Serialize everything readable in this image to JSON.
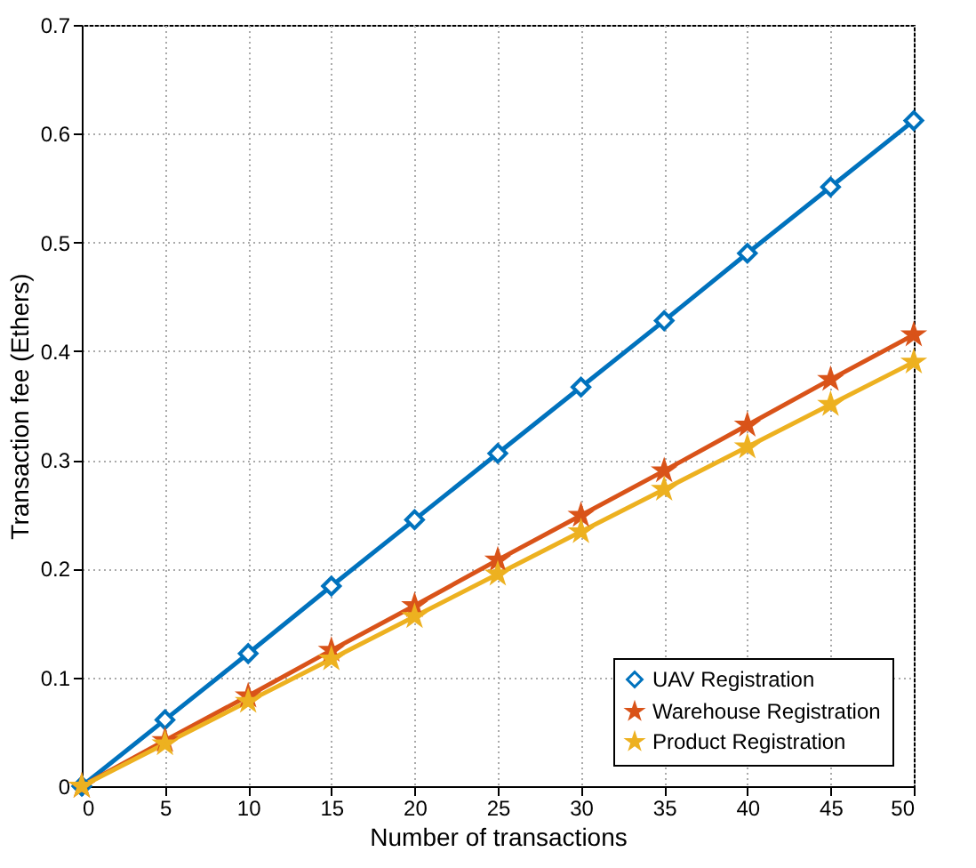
{
  "chart_data": {
    "type": "line",
    "xlabel": "Number of transactions",
    "ylabel": "Transaction fee (Ethers)",
    "x": [
      0,
      5,
      10,
      15,
      20,
      25,
      30,
      35,
      40,
      45,
      50
    ],
    "series": [
      {
        "name": "UAV Registration",
        "color": "#0072bd",
        "marker": "diamond",
        "values": [
          0,
          0.061,
          0.122,
          0.184,
          0.245,
          0.306,
          0.367,
          0.428,
          0.49,
          0.551,
          0.612
        ]
      },
      {
        "name": "Warehouse Registration",
        "color": "#d95319",
        "marker": "star",
        "values": [
          0,
          0.042,
          0.083,
          0.125,
          0.166,
          0.208,
          0.249,
          0.29,
          0.332,
          0.374,
          0.415
        ]
      },
      {
        "name": "Product Registration",
        "color": "#edb120",
        "marker": "star",
        "values": [
          0,
          0.039,
          0.078,
          0.117,
          0.156,
          0.195,
          0.234,
          0.273,
          0.312,
          0.351,
          0.39
        ]
      }
    ],
    "xlim": [
      0,
      50
    ],
    "xticks": [
      0,
      5,
      10,
      15,
      20,
      25,
      30,
      35,
      40,
      45,
      50
    ],
    "ylim": [
      0,
      0.7
    ],
    "yticks": [
      0,
      0.1,
      0.2,
      0.3,
      0.4,
      0.5,
      0.6,
      0.7
    ],
    "grid": true,
    "legend": "bottom right",
    "line_style": "solid"
  }
}
